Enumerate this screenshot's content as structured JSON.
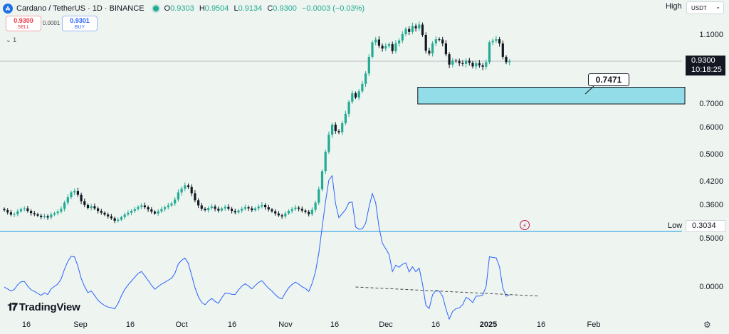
{
  "header": {
    "symbol": "Cardano / TetherUS · 1D · BINANCE",
    "ohlc": {
      "o_label": "O",
      "o": "0.9303",
      "h_label": "H",
      "h": "0.9504",
      "l_label": "L",
      "l": "0.9134",
      "c_label": "C",
      "c": "0.9300",
      "change": "−0.0003 (−0.03%)"
    },
    "sell_price": "0.9300",
    "sell_label": "SELL",
    "buy_price": "0.9301",
    "buy_label": "BUY",
    "spread": "0.0001",
    "indicator_toggle": "1",
    "icon": "cardano-coin-icon"
  },
  "price_axis": {
    "high_label": "High",
    "currency": "USDT",
    "ticks": [
      "1.1000",
      "0.7000",
      "0.6000",
      "0.5000",
      "0.4200",
      "0.3600"
    ],
    "current_price": "0.9300",
    "countdown": "10:18:25",
    "low_label": "Low",
    "low_value": "0.3034"
  },
  "osc_axis": {
    "ticks": [
      "0.5000",
      "0.0000"
    ]
  },
  "annotation": {
    "callout": "0.7471",
    "zone_top": 0.79,
    "zone_bottom": 0.7
  },
  "time_axis": [
    {
      "label": "16",
      "bold": false
    },
    {
      "label": "Sep",
      "bold": false
    },
    {
      "label": "16",
      "bold": false
    },
    {
      "label": "Oct",
      "bold": false
    },
    {
      "label": "16",
      "bold": false
    },
    {
      "label": "Nov",
      "bold": false
    },
    {
      "label": "16",
      "bold": false
    },
    {
      "label": "Dec",
      "bold": false
    },
    {
      "label": "16",
      "bold": false
    },
    {
      "label": "2025",
      "bold": true
    },
    {
      "label": "16",
      "bold": false
    },
    {
      "label": "Feb",
      "bold": false
    }
  ],
  "logo": "TradingView",
  "colors": {
    "up": "#22ab94",
    "down": "#131722",
    "zone": "#93dde8",
    "osc": "#2962ff",
    "bg": "#eef4ef"
  },
  "chart_data": {
    "type": "candlestick",
    "series": [
      {
        "name": "ADA/USDT",
        "values": [
          0.348,
          0.342,
          0.336,
          0.337,
          0.345,
          0.351,
          0.353,
          0.346,
          0.34,
          0.337,
          0.333,
          0.329,
          0.332,
          0.328,
          0.336,
          0.34,
          0.344,
          0.352,
          0.368,
          0.382,
          0.394,
          0.398,
          0.388,
          0.372,
          0.362,
          0.354,
          0.359,
          0.353,
          0.346,
          0.341,
          0.336,
          0.331,
          0.326,
          0.319,
          0.322,
          0.329,
          0.336,
          0.341,
          0.346,
          0.351,
          0.357,
          0.361,
          0.356,
          0.35,
          0.344,
          0.339,
          0.345,
          0.351,
          0.356,
          0.361,
          0.366,
          0.376,
          0.394,
          0.404,
          0.412,
          0.408,
          0.392,
          0.374,
          0.361,
          0.352,
          0.348,
          0.354,
          0.358,
          0.352,
          0.347,
          0.353,
          0.357,
          0.352,
          0.346,
          0.342,
          0.347,
          0.352,
          0.356,
          0.353,
          0.348,
          0.353,
          0.358,
          0.362,
          0.356,
          0.35,
          0.345,
          0.339,
          0.334,
          0.331,
          0.339,
          0.346,
          0.351,
          0.355,
          0.352,
          0.347,
          0.343,
          0.337,
          0.349,
          0.368,
          0.402,
          0.453,
          0.512,
          0.574,
          0.612,
          0.587,
          0.583,
          0.618,
          0.658,
          0.712,
          0.758,
          0.735,
          0.768,
          0.808,
          0.864,
          0.958,
          1.052,
          1.07,
          1.03,
          1.012,
          1.028,
          1.04,
          0.995,
          1.045,
          1.064,
          1.105,
          1.14,
          1.12,
          1.16,
          1.145,
          1.17,
          1.1,
          0.998,
          0.98,
          1.045,
          1.072,
          1.07,
          1.045,
          0.975,
          0.912,
          0.935,
          0.932,
          0.92,
          0.915,
          0.935,
          0.922,
          0.902,
          0.92,
          0.908,
          0.9,
          0.925,
          1.052,
          1.062,
          1.072,
          1.045,
          0.958,
          0.925,
          0.93
        ]
      }
    ],
    "oscillator": {
      "name": "oscillator",
      "ylim": [
        -0.1,
        0.5
      ],
      "trend_from": [
        105,
        0.0
      ],
      "trend_to": [
        160,
        -0.095
      ]
    },
    "ylim": [
      0.3,
      1.25
    ],
    "ylabel": ""
  }
}
